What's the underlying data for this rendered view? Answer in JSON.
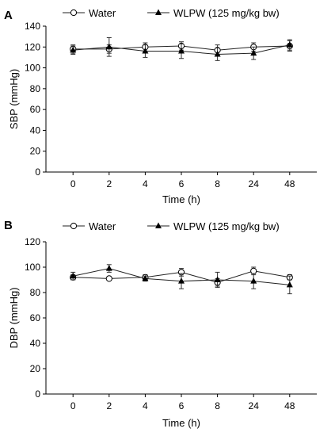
{
  "chart_data": [
    {
      "panel": "A",
      "type": "line",
      "ylabel": "SBP (mmHg)",
      "xlabel": "Time (h)",
      "categories": [
        "0",
        "2",
        "4",
        "6",
        "8",
        "24",
        "48"
      ],
      "yticks": [
        "0",
        "20",
        "40",
        "60",
        "80",
        "100",
        "120",
        "140"
      ],
      "ylim": [
        0,
        140
      ],
      "grid": false,
      "legend_position": "top",
      "series": [
        {
          "name": "Water",
          "marker": "open-circle",
          "values": [
            118,
            118,
            120,
            121,
            117,
            120,
            121
          ],
          "errors": [
            4,
            4,
            4,
            4,
            5,
            4,
            5
          ]
        },
        {
          "name": "WLPW (125 mg/kg bw)",
          "marker": "filled-triangle",
          "values": [
            117,
            120,
            116,
            116,
            113,
            114,
            122
          ],
          "errors": [
            4,
            9,
            6,
            7,
            6,
            6,
            5
          ]
        }
      ]
    },
    {
      "panel": "B",
      "type": "line",
      "ylabel": "DBP (mmHg)",
      "xlabel": "Time (h)",
      "categories": [
        "0",
        "2",
        "4",
        "6",
        "8",
        "24",
        "48"
      ],
      "yticks": [
        "0",
        "20",
        "40",
        "60",
        "80",
        "100",
        "120"
      ],
      "ylim": [
        0,
        120
      ],
      "grid": false,
      "legend_position": "top",
      "series": [
        {
          "name": "Water",
          "marker": "open-circle",
          "values": [
            92,
            91,
            92,
            96,
            88,
            97,
            92
          ],
          "errors": [
            2,
            1,
            2,
            3,
            3,
            3,
            2
          ]
        },
        {
          "name": "WLPW (125 mg/kg bw)",
          "marker": "filled-triangle",
          "values": [
            93,
            99,
            91,
            89,
            90,
            89,
            86
          ],
          "errors": [
            3,
            3,
            2,
            6,
            6,
            6,
            7
          ]
        }
      ]
    }
  ]
}
